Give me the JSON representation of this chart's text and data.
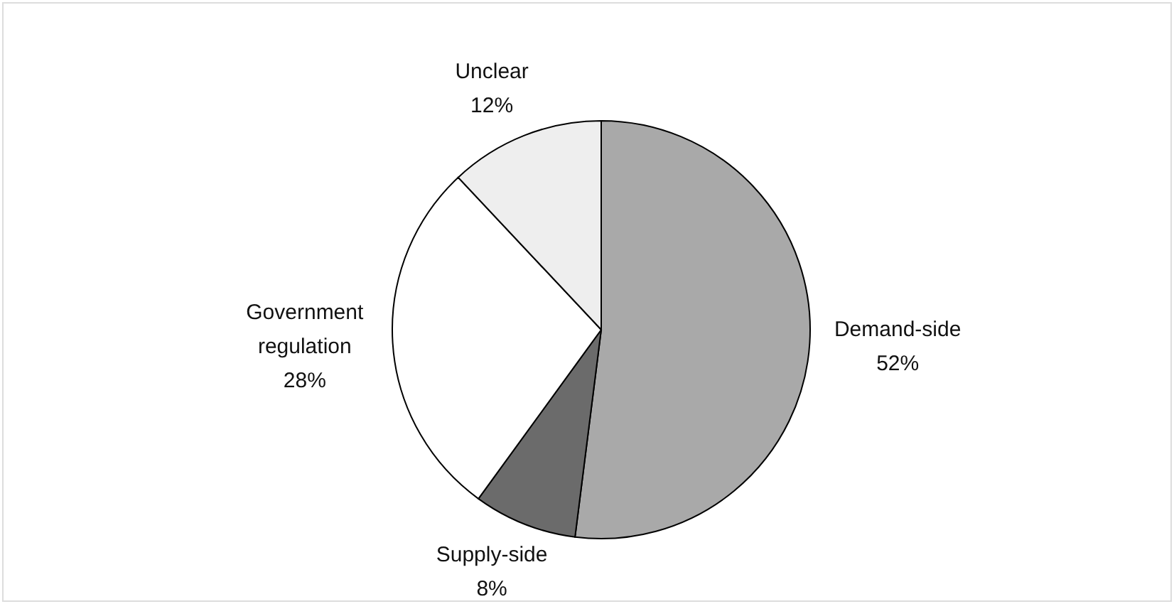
{
  "chart_data": {
    "type": "pie",
    "categories": [
      "Demand-side",
      "Supply-side",
      "Government regulation",
      "Unclear"
    ],
    "values": [
      52,
      8,
      28,
      12
    ],
    "colors": [
      "#a9a9a9",
      "#6b6b6b",
      "#ffffff",
      "#eeeeee"
    ],
    "value_labels": [
      "52%",
      "8%",
      "28%",
      "12%"
    ]
  }
}
